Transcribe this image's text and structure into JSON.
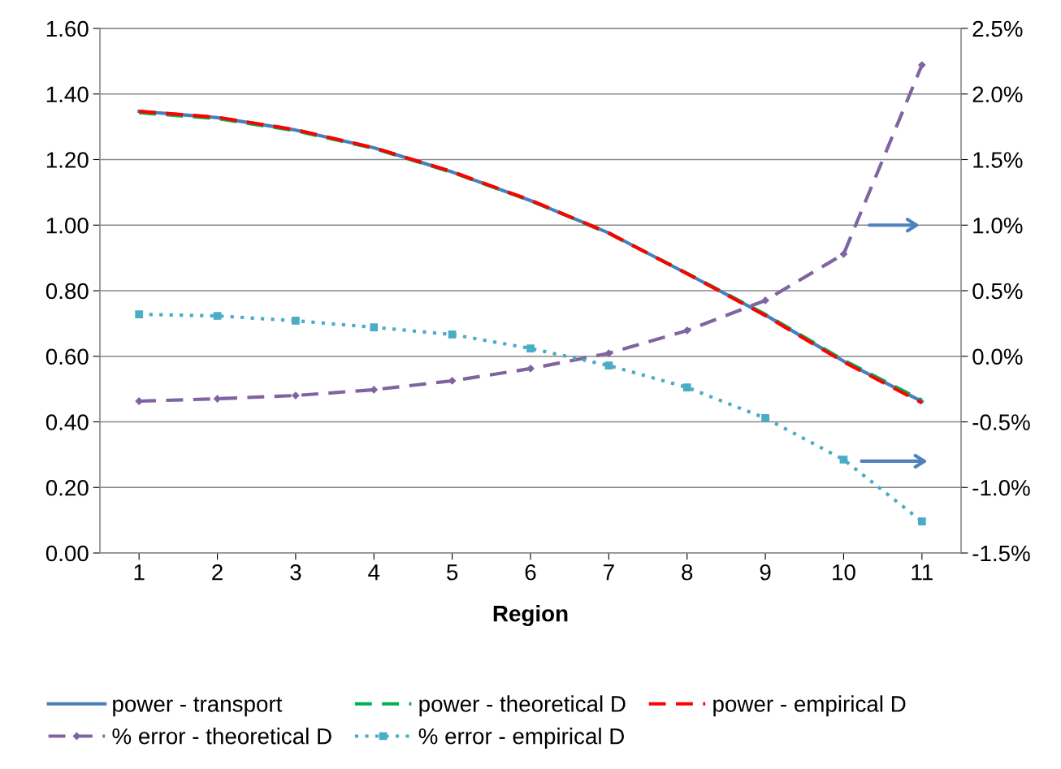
{
  "chart_data": {
    "type": "line",
    "xlabel": "Region",
    "categories": [
      "1",
      "2",
      "3",
      "4",
      "5",
      "6",
      "7",
      "8",
      "9",
      "10",
      "11"
    ],
    "ylim": [
      0,
      1.6
    ],
    "yticks": [
      {
        "value": 0,
        "label": "0.00"
      },
      {
        "value": 0.2,
        "label": "0.20"
      },
      {
        "value": 0.4,
        "label": "0.40"
      },
      {
        "value": 0.6,
        "label": "0.60"
      },
      {
        "value": 0.8,
        "label": "0.80"
      },
      {
        "value": 1.0,
        "label": "1.00"
      },
      {
        "value": 1.2,
        "label": "1.20"
      },
      {
        "value": 1.4,
        "label": "1.40"
      },
      {
        "value": 1.6,
        "label": "1.60"
      }
    ],
    "y2lim": [
      -1.5,
      2.5
    ],
    "y2ticks": [
      {
        "value": -1.5,
        "label": "-1.5%"
      },
      {
        "value": -1.0,
        "label": "-1.0%"
      },
      {
        "value": -0.5,
        "label": "-0.5%"
      },
      {
        "value": 0,
        "label": "0.0%"
      },
      {
        "value": 0.5,
        "label": "0.5%"
      },
      {
        "value": 1.0,
        "label": "1.0%"
      },
      {
        "value": 1.5,
        "label": "1.5%"
      },
      {
        "value": 2.0,
        "label": "2.0%"
      },
      {
        "value": 2.5,
        "label": "2.5%"
      }
    ],
    "grid": "y",
    "legend": "bottom",
    "series": [
      {
        "name": "power - transport",
        "color": "#4a7ebb",
        "line_style": "solid",
        "marker": "none",
        "values": [
          1.347,
          1.328,
          1.29,
          1.236,
          1.162,
          1.075,
          0.976,
          0.852,
          0.726,
          0.585,
          0.462
        ]
      },
      {
        "name": "power - theoretical D",
        "color": "#00b050",
        "line_style": "dashed",
        "marker": "none",
        "values": [
          1.343,
          1.325,
          1.288,
          1.234,
          1.161,
          1.075,
          0.975,
          0.853,
          0.728,
          0.588,
          0.466
        ]
      },
      {
        "name": "power - empirical D",
        "color": "#ff0000",
        "line_style": "dashed",
        "marker": "none",
        "values": [
          1.347,
          1.329,
          1.291,
          1.236,
          1.163,
          1.076,
          0.976,
          0.852,
          0.724,
          0.583,
          0.458
        ]
      },
      {
        "name": "% error - theoretical D",
        "color": "#8064a2",
        "line_style": "dashed",
        "marker": "diamond",
        "axis": "y2",
        "values": [
          -0.342,
          -0.324,
          -0.299,
          -0.255,
          -0.187,
          -0.094,
          0.023,
          0.197,
          0.426,
          0.779,
          2.221
        ]
      },
      {
        "name": "% error - empirical D",
        "color": "#4bacc6",
        "line_style": "dotted",
        "marker": "square",
        "axis": "y2",
        "values": [
          0.32,
          0.308,
          0.271,
          0.221,
          0.166,
          0.06,
          -0.07,
          -0.237,
          -0.472,
          -0.788,
          -1.259
        ]
      }
    ]
  }
}
